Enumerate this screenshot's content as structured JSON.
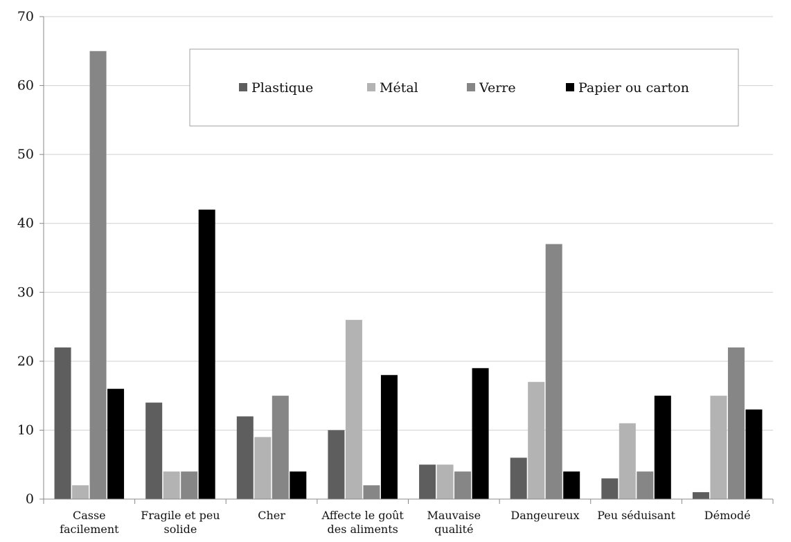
{
  "chart_data": {
    "type": "bar",
    "categories": [
      [
        "Casse",
        "facilement"
      ],
      [
        "Fragile et peu",
        "solide"
      ],
      [
        "Cher"
      ],
      [
        "Affecte le goût",
        "des aliments"
      ],
      [
        "Mauvaise",
        "qualité"
      ],
      [
        "Dangeureux"
      ],
      [
        "Peu séduisant"
      ],
      [
        "Démodé"
      ]
    ],
    "series": [
      {
        "name": "Plastique",
        "color": "#5e5e5e",
        "values": [
          22,
          14,
          12,
          10,
          5,
          6,
          3,
          1
        ]
      },
      {
        "name": "Métal",
        "color": "#b3b3b3",
        "values": [
          2,
          4,
          9,
          26,
          5,
          17,
          11,
          15
        ]
      },
      {
        "name": "Verre",
        "color": "#868686",
        "values": [
          65,
          4,
          15,
          2,
          4,
          37,
          4,
          22
        ]
      },
      {
        "name": "Papier ou carton",
        "color": "#000000",
        "values": [
          16,
          42,
          4,
          18,
          19,
          4,
          15,
          13
        ]
      }
    ],
    "ylim": [
      0,
      70
    ],
    "yticks": [
      0,
      10,
      20,
      30,
      40,
      50,
      60,
      70
    ],
    "grid": true,
    "legend": "top-center"
  }
}
